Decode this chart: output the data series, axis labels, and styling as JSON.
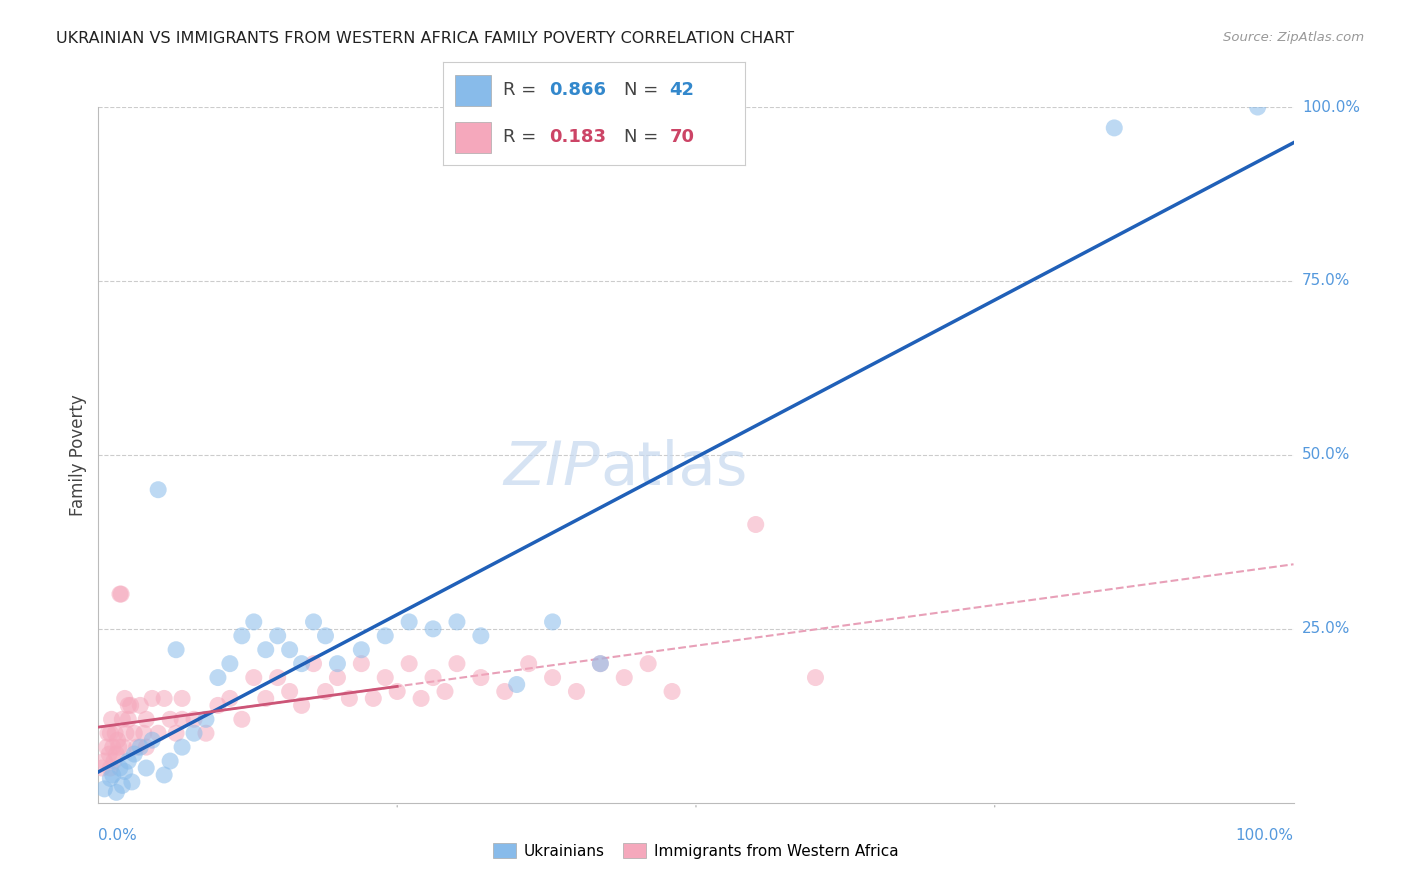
{
  "title": "UKRAINIAN VS IMMIGRANTS FROM WESTERN AFRICA FAMILY POVERTY CORRELATION CHART",
  "source": "Source: ZipAtlas.com",
  "ylabel": "Family Poverty",
  "background_color": "#ffffff",
  "blue_scatter_color": "#88bbea",
  "pink_scatter_color": "#f5a8bc",
  "blue_line_color": "#2060b8",
  "pink_solid_line_color": "#cc5577",
  "pink_dash_line_color": "#e8a0b8",
  "grid_color": "#cccccc",
  "axis_label_color": "#5599dd",
  "title_color": "#222222",
  "source_color": "#999999",
  "legend_box_color": "#ffffff",
  "legend_border_color": "#cccccc",
  "legend_r_color": "#444444",
  "legend_val_color_blue": "#3388cc",
  "legend_val_color_pink": "#cc4466",
  "watermark_color": "#c5d8ef",
  "uk_x": [
    0.5,
    1.0,
    1.2,
    1.5,
    1.8,
    2.0,
    2.2,
    2.5,
    2.8,
    3.0,
    3.5,
    4.0,
    4.5,
    5.0,
    5.5,
    6.0,
    6.5,
    7.0,
    8.0,
    9.0,
    10.0,
    11.0,
    12.0,
    13.0,
    14.0,
    15.0,
    16.0,
    17.0,
    18.0,
    19.0,
    20.0,
    22.0,
    24.0,
    26.0,
    28.0,
    30.0,
    32.0,
    35.0,
    38.0,
    42.0,
    85.0,
    97.0
  ],
  "uk_y": [
    2.0,
    3.5,
    4.0,
    1.5,
    5.0,
    2.5,
    4.5,
    6.0,
    3.0,
    7.0,
    8.0,
    5.0,
    9.0,
    45.0,
    4.0,
    6.0,
    22.0,
    8.0,
    10.0,
    12.0,
    18.0,
    20.0,
    24.0,
    26.0,
    22.0,
    24.0,
    22.0,
    20.0,
    26.0,
    24.0,
    20.0,
    22.0,
    24.0,
    26.0,
    25.0,
    26.0,
    24.0,
    17.0,
    26.0,
    20.0,
    97.0,
    100.0
  ],
  "wa_x": [
    0.3,
    0.5,
    0.7,
    0.8,
    0.9,
    1.0,
    1.1,
    1.2,
    1.3,
    1.4,
    1.5,
    1.6,
    1.7,
    1.8,
    1.9,
    2.0,
    2.1,
    2.2,
    2.3,
    2.5,
    2.7,
    3.0,
    3.2,
    3.5,
    3.8,
    4.0,
    4.5,
    5.0,
    5.5,
    6.0,
    6.5,
    7.0,
    8.0,
    9.0,
    10.0,
    11.0,
    12.0,
    13.0,
    14.0,
    15.0,
    16.0,
    17.0,
    18.0,
    19.0,
    20.0,
    21.0,
    22.0,
    23.0,
    24.0,
    25.0,
    26.0,
    27.0,
    28.0,
    29.0,
    30.0,
    32.0,
    34.0,
    36.0,
    38.0,
    40.0,
    42.0,
    44.0,
    46.0,
    48.0,
    55.0,
    60.0,
    1.0,
    2.5,
    4.0,
    7.0
  ],
  "wa_y": [
    5.0,
    6.0,
    8.0,
    10.0,
    7.0,
    5.0,
    12.0,
    8.0,
    6.0,
    10.0,
    7.0,
    9.0,
    8.0,
    30.0,
    30.0,
    12.0,
    8.0,
    15.0,
    10.0,
    12.0,
    14.0,
    10.0,
    8.0,
    14.0,
    10.0,
    12.0,
    15.0,
    10.0,
    15.0,
    12.0,
    10.0,
    15.0,
    12.0,
    10.0,
    14.0,
    15.0,
    12.0,
    18.0,
    15.0,
    18.0,
    16.0,
    14.0,
    20.0,
    16.0,
    18.0,
    15.0,
    20.0,
    15.0,
    18.0,
    16.0,
    20.0,
    15.0,
    18.0,
    16.0,
    20.0,
    18.0,
    16.0,
    20.0,
    18.0,
    16.0,
    20.0,
    18.0,
    20.0,
    16.0,
    40.0,
    18.0,
    10.0,
    14.0,
    8.0,
    12.0
  ]
}
